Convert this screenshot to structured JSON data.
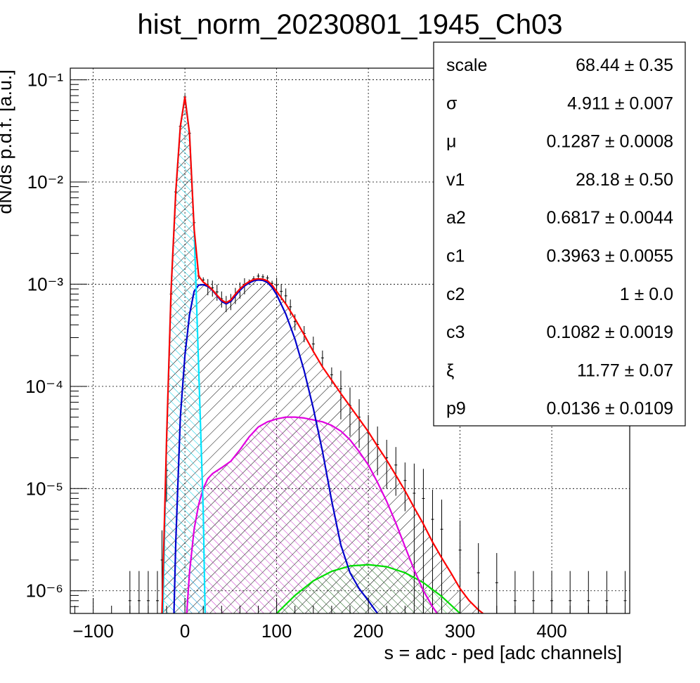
{
  "chart_data": {
    "type": "line",
    "title": "hist_norm_20230801_1945_Ch03",
    "xlabel": "s = adc - ped [adc channels]",
    "ylabel": "dN/ds p.d.f. [a.u.]",
    "xlim": [
      -125,
      485
    ],
    "ylim": [
      6e-07,
      0.13
    ],
    "yscale": "log",
    "grid": true,
    "legend_position": "top-right",
    "x_ticks": [
      "−100",
      "0",
      "100",
      "200",
      "300",
      "400"
    ],
    "x_tick_values": [
      -100,
      0,
      100,
      200,
      300,
      400
    ],
    "y_ticks": [
      "10⁻¹",
      "10⁻²",
      "10⁻³",
      "10⁻⁴",
      "10⁻⁵",
      "10⁻⁶"
    ],
    "y_tick_values": [
      0.1,
      0.01,
      0.001,
      0.0001,
      1e-05,
      1e-06
    ],
    "colors": {
      "data": "#000000",
      "total_fit": "#ff0000",
      "pedestal": "#00e5ff",
      "single_pe": "#0000cc",
      "second_comp": "#e000e0",
      "third_comp": "#00dd00"
    },
    "series": [
      {
        "key": "data",
        "x": [
          -60,
          -50,
          -40,
          -30,
          -25,
          -20,
          -15,
          -10,
          -5,
          0,
          5,
          10,
          15,
          20,
          25,
          30,
          35,
          40,
          45,
          50,
          55,
          60,
          65,
          70,
          75,
          80,
          85,
          90,
          95,
          100,
          105,
          110,
          115,
          120,
          130,
          140,
          150,
          160,
          170,
          180,
          190,
          200,
          210,
          220,
          230,
          240,
          250,
          260,
          270,
          280,
          300,
          320,
          340,
          360,
          380,
          400,
          420,
          440,
          460,
          480
        ],
        "values": [
          8e-07,
          8e-07,
          8e-07,
          8e-07,
          2e-06,
          1.5e-05,
          0.0008,
          0.008,
          0.035,
          0.068,
          0.03,
          0.004,
          0.0012,
          0.0011,
          0.00095,
          0.00092,
          0.00084,
          0.00072,
          0.00065,
          0.00068,
          0.00078,
          0.00088,
          0.00097,
          0.00105,
          0.00113,
          0.0012,
          0.00118,
          0.00115,
          0.00102,
          0.00098,
          0.00085,
          0.00077,
          0.0006,
          0.00043,
          0.00033,
          0.00026,
          0.00019,
          0.00013,
          9.5e-05,
          6.5e-05,
          5e-05,
          3.5e-05,
          2.7e-05,
          2e-05,
          1.7e-05,
          1.2e-05,
          9e-06,
          8e-06,
          5e-06,
          4e-06,
          2.5e-06,
          1.5e-06,
          1.2e-06,
          8e-07,
          8e-07,
          8e-07,
          8e-07,
          8e-07,
          8e-07,
          8e-07
        ]
      },
      {
        "key": "total_fit",
        "x": [
          -25,
          -20,
          -15,
          -10,
          -5,
          0,
          5,
          10,
          15,
          20,
          25,
          30,
          35,
          40,
          45,
          50,
          55,
          60,
          65,
          70,
          75,
          80,
          85,
          90,
          95,
          100,
          110,
          120,
          130,
          140,
          150,
          160,
          170,
          180,
          190,
          200,
          210,
          220,
          230,
          240,
          250,
          260,
          270,
          280,
          290,
          300,
          310,
          320,
          325
        ],
        "values": [
          6e-07,
          3e-05,
          0.0009,
          0.008,
          0.035,
          0.068,
          0.03,
          0.0035,
          0.0012,
          0.00105,
          0.00097,
          0.00088,
          0.00078,
          0.0007,
          0.00066,
          0.0007,
          0.0008,
          0.0009,
          0.00099,
          0.00106,
          0.00111,
          0.00113,
          0.00112,
          0.00108,
          0.00098,
          0.00085,
          0.00064,
          0.00046,
          0.00032,
          0.00022,
          0.000155,
          0.000115,
          8.5e-05,
          6.4e-05,
          4.8e-05,
          3.6e-05,
          2.6e-05,
          1.9e-05,
          1.35e-05,
          9.5e-06,
          6.5e-06,
          4.5e-06,
          3e-06,
          2.1e-06,
          1.5e-06,
          1.05e-06,
          8e-07,
          6.5e-07,
          6e-07
        ]
      },
      {
        "key": "pedestal",
        "x": [
          -24,
          -20,
          -15,
          -10,
          -5,
          0,
          5,
          10,
          15,
          20,
          22
        ],
        "values": [
          6e-07,
          3e-05,
          0.0009,
          0.008,
          0.035,
          0.068,
          0.03,
          0.0035,
          0.00015,
          6e-06,
          6e-07
        ]
      },
      {
        "key": "single_pe",
        "x": [
          -12,
          -10,
          -5,
          0,
          5,
          10,
          15,
          20,
          25,
          30,
          35,
          40,
          45,
          50,
          55,
          60,
          65,
          70,
          75,
          80,
          85,
          90,
          95,
          100,
          110,
          120,
          130,
          140,
          150,
          160,
          170,
          180,
          190,
          200,
          210
        ],
        "values": [
          6e-07,
          3e-06,
          5e-05,
          0.0002,
          0.0005,
          0.00085,
          0.00098,
          0.00099,
          0.00095,
          0.00087,
          0.00077,
          0.00068,
          0.00064,
          0.00068,
          0.00077,
          0.00087,
          0.00096,
          0.00103,
          0.00108,
          0.0011,
          0.00109,
          0.00104,
          0.00093,
          0.00079,
          0.00051,
          0.00029,
          0.000142,
          6.1e-05,
          2.3e-05,
          7.6e-06,
          2.8e-06,
          1.5e-06,
          1.05e-06,
          8e-07,
          6e-07
        ]
      },
      {
        "key": "second_comp",
        "x": [
          2,
          5,
          10,
          15,
          20,
          25,
          30,
          40,
          50,
          60,
          70,
          80,
          90,
          100,
          110,
          120,
          130,
          140,
          150,
          160,
          170,
          180,
          190,
          200,
          210,
          220,
          230,
          240,
          250,
          260,
          270,
          275
        ],
        "values": [
          6e-07,
          1.5e-06,
          4e-06,
          7e-06,
          1e-05,
          1.25e-05,
          1.4e-05,
          1.6e-05,
          1.85e-05,
          2.4e-05,
          3.2e-05,
          4e-05,
          4.5e-05,
          4.8e-05,
          5e-05,
          5e-05,
          4.9e-05,
          4.7e-05,
          4.5e-05,
          4.15e-05,
          3.65e-05,
          3e-05,
          2.3e-05,
          1.7e-05,
          1.15e-05,
          7.5e-06,
          4.6e-06,
          2.7e-06,
          1.6e-06,
          1e-06,
          7e-07,
          6e-07
        ]
      },
      {
        "key": "third_comp",
        "x": [
          100,
          120,
          140,
          160,
          180,
          200,
          220,
          240,
          260,
          280,
          300
        ],
        "values": [
          6e-07,
          9e-07,
          1.25e-06,
          1.55e-06,
          1.75e-06,
          1.8e-06,
          1.72e-06,
          1.5e-06,
          1.2e-06,
          8.8e-07,
          6e-07
        ]
      }
    ]
  },
  "stats_box": {
    "rows": [
      {
        "name": "scale",
        "value": "68.44 ± 0.35"
      },
      {
        "name": "σ",
        "value": "4.911 ± 0.007"
      },
      {
        "name": "μ",
        "value": "0.1287 ± 0.0008"
      },
      {
        "name": "v1",
        "value": "28.18 ± 0.50"
      },
      {
        "name": "a2",
        "value": "0.6817 ± 0.0044"
      },
      {
        "name": "c1",
        "value": "0.3963 ± 0.0055"
      },
      {
        "name": "c2",
        "value": "1 ± 0.0"
      },
      {
        "name": "c3",
        "value": "0.1082 ± 0.0019"
      },
      {
        "name": "ξ",
        "value": "11.77 ± 0.07"
      },
      {
        "name": "p9",
        "value": "0.0136 ± 0.0109"
      }
    ]
  }
}
